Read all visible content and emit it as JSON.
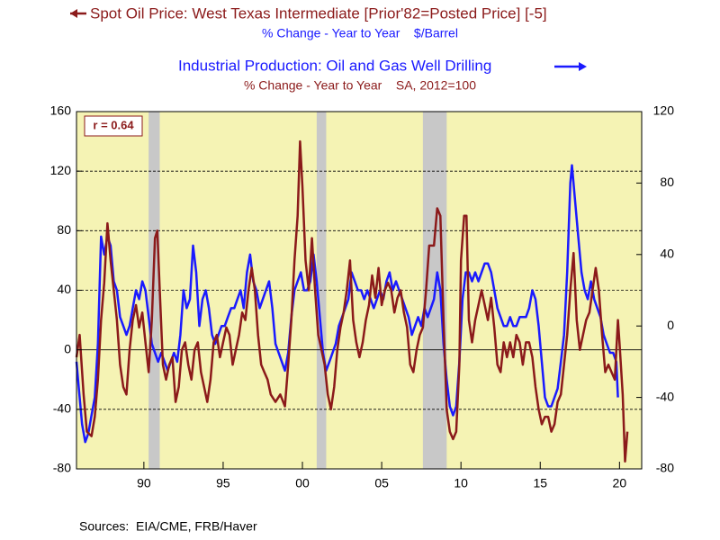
{
  "chart_data": {
    "type": "line",
    "title_lines": [
      {
        "text": "Spot Oil Price: West Texas Intermediate [Prior'82=Posted Price] [-5]",
        "color": "#8b1a1a"
      },
      {
        "text": "% Change - Year to Year    $/Barrel",
        "color": "#1a1aff"
      },
      {
        "text": "Industrial Production: Oil and Gas Well Drilling",
        "color": "#1a1aff"
      },
      {
        "text": "% Change - Year to Year    SA, 2012=100",
        "color": "#8b1a1a"
      }
    ],
    "annotation": "r = 0.64",
    "source": "Sources:  EIA/CME, FRB/Haver",
    "xlim": [
      1985.75,
      2021.4
    ],
    "xticks": [
      {
        "value": 1990,
        "label": "90"
      },
      {
        "value": 1995,
        "label": "95"
      },
      {
        "value": 2000,
        "label": "00"
      },
      {
        "value": 2005,
        "label": "05"
      },
      {
        "value": 2010,
        "label": "10"
      },
      {
        "value": 2015,
        "label": "15"
      },
      {
        "value": 2020,
        "label": "20"
      }
    ],
    "ylim": [
      -80,
      160
    ],
    "yticks": [
      -80,
      -40,
      0,
      40,
      80,
      120,
      160
    ],
    "y2lim": [
      -80,
      120
    ],
    "y2ticks": [
      -80,
      -40,
      0,
      40,
      80,
      120
    ],
    "grid": true,
    "shaded_periods": [
      [
        1990.3,
        1991.0
      ],
      [
        2000.9,
        2001.5
      ],
      [
        2007.6,
        2009.1
      ]
    ],
    "series": [
      {
        "name": "Spot Oil Price: West Texas Intermediate",
        "color": "#8b1a1a",
        "axis": "y",
        "x": [
          1985.75,
          1985.95,
          1986.2,
          1986.4,
          1986.7,
          1986.9,
          1987.1,
          1987.3,
          1987.5,
          1987.7,
          1987.9,
          1988.1,
          1988.3,
          1988.5,
          1988.7,
          1988.9,
          1989.1,
          1989.3,
          1989.5,
          1989.7,
          1989.9,
          1990.1,
          1990.3,
          1990.5,
          1990.7,
          1990.85,
          1991.0,
          1991.2,
          1991.4,
          1991.6,
          1991.8,
          1992.0,
          1992.2,
          1992.4,
          1992.6,
          1992.8,
          1993.0,
          1993.2,
          1993.4,
          1993.6,
          1993.8,
          1994.0,
          1994.2,
          1994.4,
          1994.6,
          1994.8,
          1995.0,
          1995.2,
          1995.4,
          1995.6,
          1995.8,
          1996.0,
          1996.2,
          1996.4,
          1996.6,
          1996.8,
          1997.0,
          1997.2,
          1997.4,
          1997.6,
          1997.8,
          1998.0,
          1998.3,
          1998.6,
          1998.9,
          1999.1,
          1999.3,
          1999.5,
          1999.7,
          1999.85,
          2000.0,
          2000.2,
          2000.4,
          2000.6,
          2000.8,
          2001.0,
          2001.2,
          2001.4,
          2001.6,
          2001.8,
          2002.0,
          2002.2,
          2002.4,
          2002.6,
          2002.8,
          2003.0,
          2003.2,
          2003.4,
          2003.6,
          2003.8,
          2004.0,
          2004.2,
          2004.4,
          2004.6,
          2004.8,
          2005.0,
          2005.2,
          2005.4,
          2005.6,
          2005.8,
          2006.0,
          2006.2,
          2006.4,
          2006.6,
          2006.8,
          2007.0,
          2007.2,
          2007.4,
          2007.6,
          2007.8,
          2008.0,
          2008.3,
          2008.5,
          2008.7,
          2008.9,
          2009.1,
          2009.3,
          2009.5,
          2009.7,
          2009.9,
          2010.0,
          2010.2,
          2010.35,
          2010.5,
          2010.7,
          2010.9,
          2011.1,
          2011.3,
          2011.5,
          2011.7,
          2011.9,
          2012.1,
          2012.3,
          2012.5,
          2012.7,
          2012.9,
          2013.1,
          2013.3,
          2013.5,
          2013.7,
          2013.9,
          2014.1,
          2014.3,
          2014.5,
          2014.7,
          2014.9,
          2015.1,
          2015.3,
          2015.5,
          2015.7,
          2015.9,
          2016.1,
          2016.3,
          2016.5,
          2016.7,
          2016.9,
          2017.1,
          2017.3,
          2017.5,
          2017.7,
          2017.9,
          2018.1,
          2018.3,
          2018.5,
          2018.7,
          2018.9,
          2019.1,
          2019.3,
          2019.5,
          2019.7,
          2019.9,
          2020.0,
          2020.2,
          2020.35,
          2020.5
        ],
        "values": [
          -5,
          10,
          -30,
          -55,
          -58,
          -45,
          -20,
          20,
          45,
          85,
          60,
          40,
          20,
          -10,
          -25,
          -30,
          0,
          20,
          30,
          15,
          25,
          5,
          -15,
          20,
          75,
          80,
          40,
          -10,
          -20,
          -10,
          -5,
          -35,
          -25,
          0,
          5,
          -10,
          -20,
          0,
          5,
          -15,
          -25,
          -35,
          -20,
          5,
          10,
          -5,
          5,
          15,
          10,
          -10,
          0,
          10,
          25,
          20,
          40,
          55,
          40,
          10,
          -10,
          -15,
          -20,
          -30,
          -35,
          -30,
          -38,
          -10,
          20,
          60,
          90,
          140,
          110,
          60,
          40,
          75,
          40,
          10,
          0,
          -10,
          -30,
          -40,
          -25,
          0,
          15,
          25,
          40,
          60,
          20,
          5,
          -5,
          5,
          20,
          30,
          50,
          35,
          55,
          30,
          40,
          45,
          40,
          25,
          35,
          40,
          25,
          15,
          -10,
          -15,
          0,
          10,
          15,
          40,
          70,
          70,
          95,
          90,
          20,
          -40,
          -55,
          -60,
          -55,
          -10,
          60,
          90,
          90,
          20,
          5,
          20,
          30,
          40,
          30,
          20,
          35,
          15,
          -10,
          -15,
          5,
          -5,
          5,
          -5,
          10,
          5,
          -10,
          5,
          5,
          -5,
          -25,
          -40,
          -50,
          -45,
          -45,
          -55,
          -50,
          -35,
          -30,
          -10,
          10,
          40,
          65,
          20,
          0,
          10,
          20,
          25,
          40,
          55,
          40,
          10,
          -15,
          -10,
          -15,
          -20,
          20,
          5,
          -30,
          -75,
          -55
        ]
      },
      {
        "name": "Industrial Production: Oil and Gas Well Drilling",
        "color": "#1a1aff",
        "axis": "y2",
        "x": [
          1985.75,
          1985.9,
          1986.1,
          1986.3,
          1986.5,
          1986.7,
          1986.9,
          1987.1,
          1987.3,
          1987.5,
          1987.7,
          1987.9,
          1988.1,
          1988.3,
          1988.5,
          1988.7,
          1988.9,
          1989.1,
          1989.3,
          1989.5,
          1989.7,
          1989.9,
          1990.1,
          1990.3,
          1990.5,
          1990.7,
          1990.9,
          1991.1,
          1991.3,
          1991.5,
          1991.7,
          1991.9,
          1992.1,
          1992.3,
          1992.5,
          1992.7,
          1992.9,
          1993.1,
          1993.3,
          1993.5,
          1993.7,
          1993.9,
          1994.1,
          1994.3,
          1994.5,
          1994.7,
          1994.9,
          1995.1,
          1995.3,
          1995.5,
          1995.7,
          1995.9,
          1996.1,
          1996.3,
          1996.5,
          1996.7,
          1996.9,
          1997.1,
          1997.3,
          1997.5,
          1997.7,
          1997.9,
          1998.1,
          1998.3,
          1998.5,
          1998.7,
          1998.9,
          1999.1,
          1999.3,
          1999.5,
          1999.7,
          1999.9,
          2000.1,
          2000.3,
          2000.5,
          2000.7,
          2000.9,
          2001.1,
          2001.3,
          2001.5,
          2001.7,
          2001.9,
          2002.1,
          2002.3,
          2002.5,
          2002.7,
          2002.9,
          2003.1,
          2003.3,
          2003.5,
          2003.7,
          2003.9,
          2004.1,
          2004.3,
          2004.5,
          2004.7,
          2004.9,
          2005.1,
          2005.3,
          2005.5,
          2005.7,
          2005.9,
          2006.1,
          2006.3,
          2006.5,
          2006.7,
          2006.9,
          2007.1,
          2007.3,
          2007.5,
          2007.7,
          2007.9,
          2008.1,
          2008.3,
          2008.5,
          2008.7,
          2008.9,
          2009.1,
          2009.3,
          2009.5,
          2009.7,
          2009.9,
          2010.1,
          2010.3,
          2010.5,
          2010.7,
          2010.9,
          2011.1,
          2011.3,
          2011.5,
          2011.7,
          2011.9,
          2012.1,
          2012.3,
          2012.5,
          2012.7,
          2012.9,
          2013.1,
          2013.3,
          2013.5,
          2013.7,
          2013.9,
          2014.1,
          2014.3,
          2014.5,
          2014.7,
          2014.9,
          2015.1,
          2015.3,
          2015.5,
          2015.7,
          2015.9,
          2016.1,
          2016.3,
          2016.5,
          2016.7,
          2016.9,
          2017.0,
          2017.2,
          2017.4,
          2017.6,
          2017.8,
          2018.0,
          2018.2,
          2018.4,
          2018.6,
          2018.8,
          2019.0,
          2019.2,
          2019.4,
          2019.6,
          2019.8,
          2019.9
        ],
        "values": [
          -20,
          -35,
          -55,
          -65,
          -60,
          -50,
          -40,
          -10,
          50,
          40,
          50,
          45,
          25,
          20,
          5,
          0,
          -5,
          0,
          10,
          20,
          15,
          25,
          20,
          5,
          -10,
          -15,
          -20,
          -15,
          -20,
          -25,
          -20,
          -15,
          -20,
          -5,
          20,
          10,
          15,
          45,
          30,
          0,
          15,
          20,
          10,
          -5,
          -10,
          -5,
          0,
          0,
          5,
          10,
          10,
          15,
          20,
          10,
          30,
          40,
          25,
          20,
          10,
          15,
          20,
          25,
          10,
          -10,
          -15,
          -20,
          -25,
          -15,
          5,
          20,
          25,
          30,
          20,
          20,
          25,
          40,
          25,
          5,
          -15,
          -25,
          -20,
          -15,
          -10,
          0,
          5,
          10,
          15,
          30,
          25,
          20,
          20,
          15,
          20,
          15,
          10,
          15,
          20,
          15,
          25,
          30,
          20,
          25,
          20,
          15,
          10,
          5,
          -5,
          0,
          5,
          0,
          10,
          5,
          10,
          15,
          30,
          20,
          -10,
          -30,
          -45,
          -50,
          -45,
          -20,
          15,
          30,
          30,
          25,
          30,
          25,
          30,
          35,
          35,
          30,
          20,
          10,
          5,
          0,
          0,
          5,
          0,
          0,
          5,
          5,
          5,
          10,
          20,
          15,
          0,
          -20,
          -40,
          -45,
          -45,
          -40,
          -35,
          -20,
          -5,
          30,
          80,
          90,
          70,
          50,
          30,
          20,
          15,
          25,
          15,
          10,
          5,
          -5,
          -10,
          -15,
          -15,
          -20,
          -40
        ]
      }
    ]
  }
}
